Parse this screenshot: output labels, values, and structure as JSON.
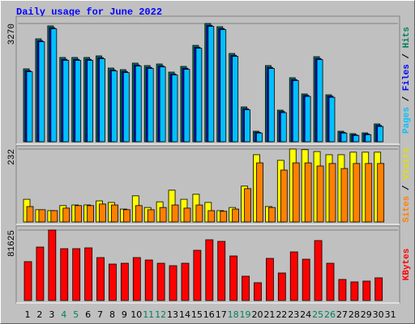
{
  "chart_data": [
    {
      "type": "bar",
      "title": "Daily usage for June 2022",
      "ylim": [
        0,
        3270
      ],
      "yticks": [
        3270
      ],
      "axis_label_parts": [
        {
          "text": "Pages",
          "color": "#00c0ff"
        },
        {
          "text": " / ",
          "color": "#000000"
        },
        {
          "text": "Files",
          "color": "#0000ff"
        },
        {
          "text": " / ",
          "color": "#000000"
        },
        {
          "text": "Hits",
          "color": "#00805c"
        }
      ],
      "series": [
        {
          "name": "Hits",
          "color": "#00805c",
          "values": [
            2016,
            2845,
            3203,
            2330,
            2330,
            2330,
            2374,
            2038,
            1993,
            2173,
            2106,
            2150,
            1926,
            2083,
            2665,
            3270,
            3181,
            2441,
            963,
            291,
            2106,
            874,
            1770,
            1322,
            2352,
            1299,
            291,
            224,
            246,
            493,
            null
          ]
        },
        {
          "name": "Files",
          "color": "#0000ff",
          "values": [
            1966,
            2795,
            3153,
            2280,
            2280,
            2280,
            2324,
            1988,
            1943,
            2123,
            2056,
            2100,
            1876,
            2033,
            2615,
            3220,
            3131,
            2391,
            913,
            261,
            2056,
            834,
            1720,
            1282,
            2302,
            1259,
            261,
            194,
            216,
            453,
            null
          ]
        },
        {
          "name": "Pages",
          "color": "#00c0ff",
          "values": [
            1936,
            2765,
            3123,
            2250,
            2250,
            2250,
            2294,
            1958,
            1913,
            2093,
            2026,
            2070,
            1846,
            2003,
            2585,
            3190,
            3101,
            2361,
            883,
            241,
            2026,
            804,
            1690,
            1252,
            2272,
            1229,
            241,
            174,
            196,
            423,
            null
          ]
        }
      ]
    },
    {
      "type": "bar",
      "ylim": [
        0,
        232
      ],
      "yticks": [
        232
      ],
      "axis_label_parts": [
        {
          "text": "Sites",
          "color": "#ff8000"
        },
        {
          "text": " / ",
          "color": "#000000"
        },
        {
          "text": "Visits",
          "color": "#e0e000"
        }
      ],
      "series": [
        {
          "name": "Visits",
          "color": "#ffff00",
          "values": [
            72,
            39,
            36,
            52,
            54,
            54,
            67,
            62,
            41,
            83,
            46,
            64,
            101,
            72,
            88,
            62,
            36,
            46,
            114,
            214,
            49,
            196,
            232,
            230,
            224,
            214,
            214,
            222,
            222,
            222,
            null
          ]
        },
        {
          "name": "Sites",
          "color": "#ff8000",
          "values": [
            49,
            39,
            36,
            44,
            52,
            52,
            57,
            54,
            39,
            52,
            39,
            46,
            54,
            44,
            54,
            36,
            34,
            41,
            106,
            188,
            46,
            165,
            188,
            188,
            178,
            186,
            170,
            186,
            186,
            186,
            null
          ]
        }
      ]
    },
    {
      "type": "bar",
      "ylim": [
        0,
        81625
      ],
      "yticks": [
        81625
      ],
      "axis_label_parts": [
        {
          "text": "KBytes",
          "color": "#ff0000"
        }
      ],
      "categories": [
        "1",
        "2",
        "3",
        "4",
        "5",
        "6",
        "7",
        "8",
        "9",
        "10",
        "11",
        "12",
        "13",
        "14",
        "15",
        "16",
        "17",
        "18",
        "19",
        "20",
        "21",
        "22",
        "23",
        "24",
        "25",
        "26",
        "27",
        "28",
        "29",
        "30",
        "31"
      ],
      "category_colors": [
        "#000000",
        "#000000",
        "#000000",
        "#00805c",
        "#00805c",
        "#000000",
        "#000000",
        "#000000",
        "#000000",
        "#000000",
        "#00805c",
        "#00805c",
        "#000000",
        "#000000",
        "#000000",
        "#000000",
        "#000000",
        "#00805c",
        "#00805c",
        "#000000",
        "#000000",
        "#000000",
        "#000000",
        "#000000",
        "#00805c",
        "#00805c",
        "#000000",
        "#000000",
        "#000000",
        "#000000",
        "#000000"
      ],
      "series": [
        {
          "name": "KBytes",
          "color": "#ff0000",
          "values": [
            45030,
            61915,
            81625,
            60040,
            60040,
            60978,
            49721,
            42216,
            43154,
            49721,
            46907,
            43154,
            40340,
            43154,
            58164,
            70360,
            68484,
            51597,
            28144,
            20639,
            48783,
            31896,
            56288,
            47845,
            69422,
            43154,
            24391,
            21577,
            22515,
            26267,
            null
          ]
        }
      ]
    }
  ]
}
